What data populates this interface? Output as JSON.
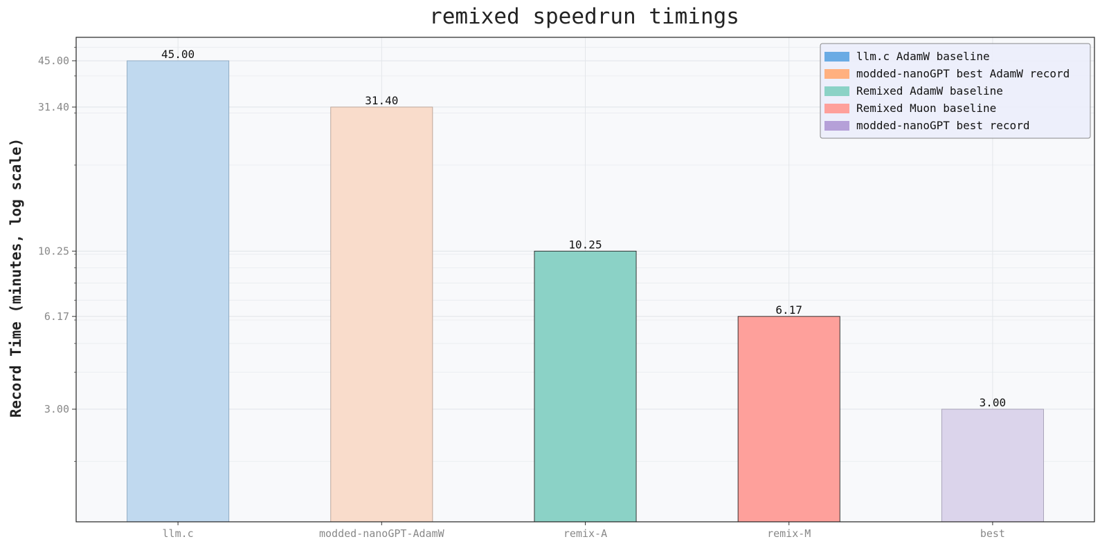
{
  "chart_data": {
    "type": "bar",
    "title": "remixed speedrun timings",
    "xlabel": "",
    "ylabel": "Record Time (minutes, log scale)",
    "yscale": "log",
    "ylim": [
      1.25,
      54
    ],
    "yticks": [
      3.0,
      6.17,
      10.25,
      31.4,
      45.0
    ],
    "ytick_labels": [
      "3.00",
      "6.17",
      "10.25",
      "31.40",
      "45.00"
    ],
    "categories": [
      "llm.c",
      "modded-nanoGPT-AdamW",
      "remix-A",
      "remix-M",
      "best"
    ],
    "values": [
      45.0,
      31.4,
      10.25,
      6.17,
      3.0
    ],
    "value_labels": [
      "45.00",
      "31.40",
      "10.25",
      "6.17",
      "3.00"
    ],
    "bar_colors": [
      "#c0d9ef",
      "#f9dccb",
      "#8bd2c6",
      "#fea09b",
      "#dbd4eb"
    ],
    "bar_edge_colors": [
      "#8aa6bd",
      "#b7a093",
      "#222222",
      "#222222",
      "#a29cb2"
    ],
    "legend_placement": "top-right",
    "legend": [
      {
        "label": "llm.c AdamW baseline",
        "color": "#6aabe4"
      },
      {
        "label": "modded-nanoGPT best AdamW record",
        "color": "#ffb07f"
      },
      {
        "label": "Remixed AdamW baseline",
        "color": "#8bd2c6"
      },
      {
        "label": "Remixed Muon baseline",
        "color": "#fea09b"
      },
      {
        "label": "modded-nanoGPT best record",
        "color": "#b5a0d8"
      }
    ],
    "grid": true,
    "background_color": "#f8f9fb"
  }
}
